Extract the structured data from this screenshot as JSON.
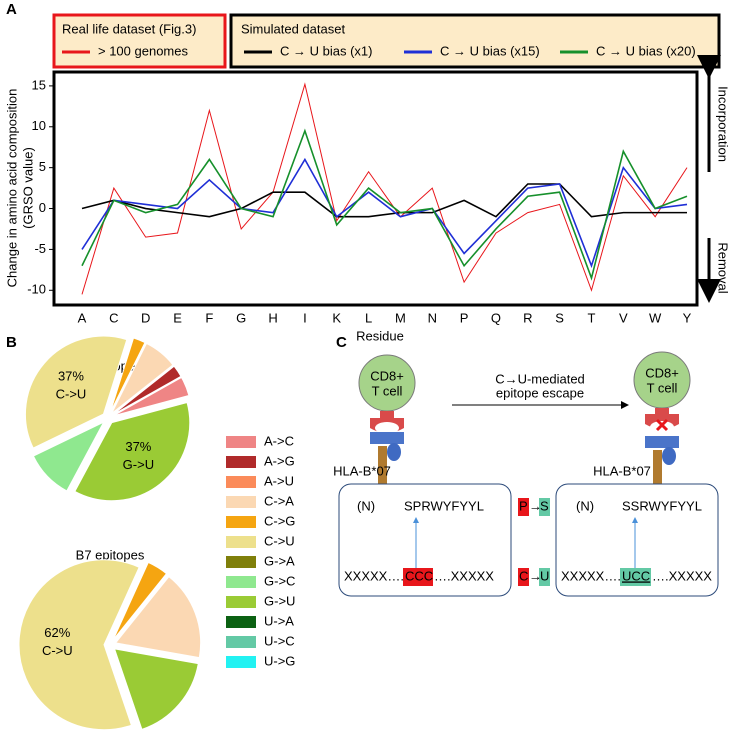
{
  "panel_labels": [
    "A",
    "B",
    "C"
  ],
  "chart_data": [
    {
      "type": "line",
      "legend_titles": [
        "Real life dataset (Fig.3)",
        "Simulated dataset"
      ],
      "categories": [
        "A",
        "C",
        "D",
        "E",
        "F",
        "G",
        "H",
        "I",
        "K",
        "L",
        "M",
        "N",
        "P",
        "Q",
        "R",
        "S",
        "T",
        "V",
        "W",
        "Y"
      ],
      "series": [
        {
          "name": "> 100 genomes",
          "color": "#e8161b",
          "values": [
            -10.5,
            2.5,
            -3.5,
            -3,
            12,
            -2.5,
            2,
            15.2,
            -1.5,
            4.5,
            -1,
            2.5,
            -9,
            -3,
            -0.5,
            0.5,
            -10,
            4,
            -1,
            5
          ]
        },
        {
          "name": "C → U bias (x1)",
          "color": "#000000",
          "values": [
            0,
            1,
            0,
            -0.5,
            -1,
            0,
            2,
            2,
            -1,
            -1,
            -0.5,
            -0.5,
            1,
            -1,
            3,
            3,
            -1,
            -0.5,
            -0.5,
            -0.5
          ]
        },
        {
          "name": "C → U bias (x15)",
          "color": "#1f2fd6",
          "values": [
            -5,
            1,
            0.5,
            0,
            3.5,
            0,
            -0.5,
            6,
            -1,
            2,
            -1,
            0,
            -5.5,
            -1.5,
            2.5,
            3,
            -7,
            5,
            0,
            0.5
          ]
        },
        {
          "name": "C → U bias (x20)",
          "color": "#16902b",
          "values": [
            -7,
            1,
            -0.5,
            0.5,
            6,
            0,
            -1,
            9.5,
            -2,
            2.5,
            -0.5,
            0,
            -7,
            -2.5,
            1.5,
            2,
            -8.5,
            7,
            0,
            1.5
          ]
        }
      ],
      "ylim": [
        -11.8,
        16.7
      ],
      "yticks": [
        -10,
        -5,
        0,
        5,
        10,
        15
      ],
      "grid": false,
      "ylabel": [
        "Change in amino acid composition",
        "(GRSO value)"
      ],
      "xlabel": "Residue",
      "annotations": [
        "Incorporation",
        "Removal"
      ]
    },
    {
      "type": "pie",
      "title": "All epitopes",
      "categories": [
        "A->C",
        "A->G",
        "A->U",
        "C->A",
        "C->G",
        "C->U",
        "G->A",
        "G->C",
        "G->U",
        "U->A",
        "U->C",
        "U->G"
      ],
      "colors": [
        "#ef8585",
        "#b02a2a",
        "#fb8b5a",
        "#fbd8b3",
        "#f5a511",
        "#ede08c",
        "#7f7f0a",
        "#8fe88f",
        "#9acb35",
        "#0b6112",
        "#63c9a5",
        "#22f2f2"
      ],
      "values": [
        4,
        2.5,
        0,
        7,
        2.5,
        37,
        0,
        10,
        37,
        0,
        0,
        0
      ],
      "value_labels": [
        null,
        null,
        null,
        null,
        null,
        "37%",
        null,
        null,
        "37%",
        null,
        null,
        null
      ]
    },
    {
      "type": "pie",
      "title": "B7 epitopes",
      "categories": [
        "A->C",
        "A->G",
        "A->U",
        "C->A",
        "C->G",
        "C->U",
        "G->A",
        "G->C",
        "G->U",
        "U->A",
        "U->C",
        "U->G"
      ],
      "colors": [
        "#ef8585",
        "#b02a2a",
        "#fb8b5a",
        "#fbd8b3",
        "#f5a511",
        "#ede08c",
        "#7f7f0a",
        "#8fe88f",
        "#9acb35",
        "#0b6112",
        "#63c9a5",
        "#22f2f2"
      ],
      "values": [
        0,
        0,
        0,
        17,
        4,
        62,
        0,
        0,
        17,
        0,
        0,
        0
      ],
      "value_labels": [
        null,
        null,
        null,
        null,
        null,
        "62%",
        null,
        null,
        null,
        null,
        null,
        null
      ]
    }
  ],
  "diagram": {
    "cell_left": [
      "CD8+",
      "T cell"
    ],
    "cell_right": [
      "CD8+",
      "T cell"
    ],
    "arrow_label": [
      "C→U-mediated",
      "epitope escape"
    ],
    "hla_left": "HLA-B*07",
    "hla_right": "HLA-B*07",
    "left_box": {
      "terminus": "(N)",
      "peptide": "SPRWYFYYL",
      "prefix": "XXXXX….",
      "codon": "CCC",
      "suffix": "….XXXXX"
    },
    "right_box": {
      "terminus": "(N)",
      "peptide": "SSRWYFYYL",
      "prefix": "XXXXX….",
      "codon": "UCC",
      "suffix": "….XXXXX"
    },
    "aa_change": {
      "from": "P",
      "arrow": "→",
      "to": "S"
    },
    "nt_change": {
      "from": "C",
      "arrow": "→",
      "to": "U"
    }
  }
}
